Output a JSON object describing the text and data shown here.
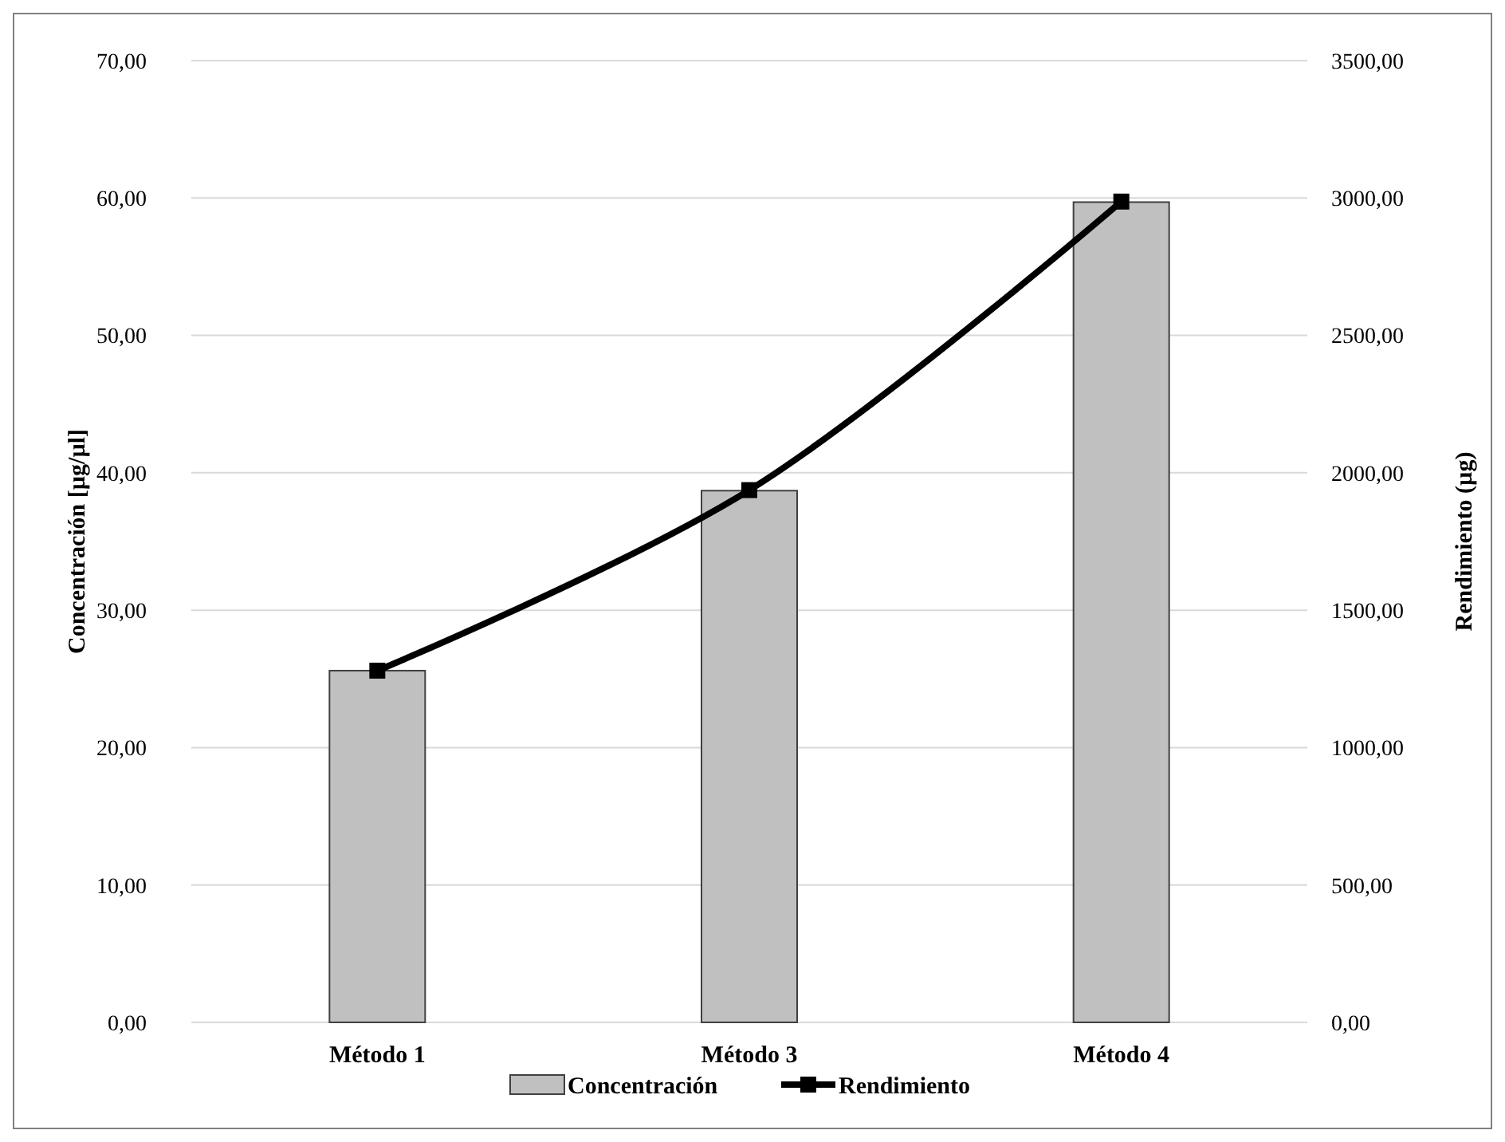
{
  "chart_data": {
    "type": "bar",
    "categories": [
      "Método 1",
      "Método 3",
      "Método 4"
    ],
    "series": [
      {
        "name": "Concentración",
        "color": "#c0c0c0",
        "values": [
          25.6,
          38.7,
          59.7
        ]
      },
      {
        "name": "Rendimiento",
        "type": "line",
        "axis": "y2",
        "color": "#000000",
        "values": [
          1280,
          1937,
          2987
        ],
        "marker": "square"
      }
    ],
    "ylabel": "Concentración [µg/µl]",
    "y2label": "Rendimiento (µg)",
    "ylim": [
      0,
      70
    ],
    "yticks": [
      {
        "value": 0,
        "label": "0,00"
      },
      {
        "value": 10,
        "label": "10,00"
      },
      {
        "value": 20,
        "label": "20,00"
      },
      {
        "value": 30,
        "label": "30,00"
      },
      {
        "value": 40,
        "label": "40,00"
      },
      {
        "value": 50,
        "label": "50,00"
      },
      {
        "value": 60,
        "label": "60,00"
      },
      {
        "value": 70,
        "label": "70,00"
      }
    ],
    "y2lim": [
      0,
      3500
    ],
    "y2ticks": [
      {
        "value": 0,
        "label": "0,00"
      },
      {
        "value": 500,
        "label": "500,00"
      },
      {
        "value": 1000,
        "label": "1000,00"
      },
      {
        "value": 1500,
        "label": "1500,00"
      },
      {
        "value": 2000,
        "label": "2000,00"
      },
      {
        "value": 2500,
        "label": "2500,00"
      },
      {
        "value": 3000,
        "label": "3000,00"
      },
      {
        "value": 3500,
        "label": "3500,00"
      }
    ],
    "grid": "y",
    "legend": "bottom"
  }
}
